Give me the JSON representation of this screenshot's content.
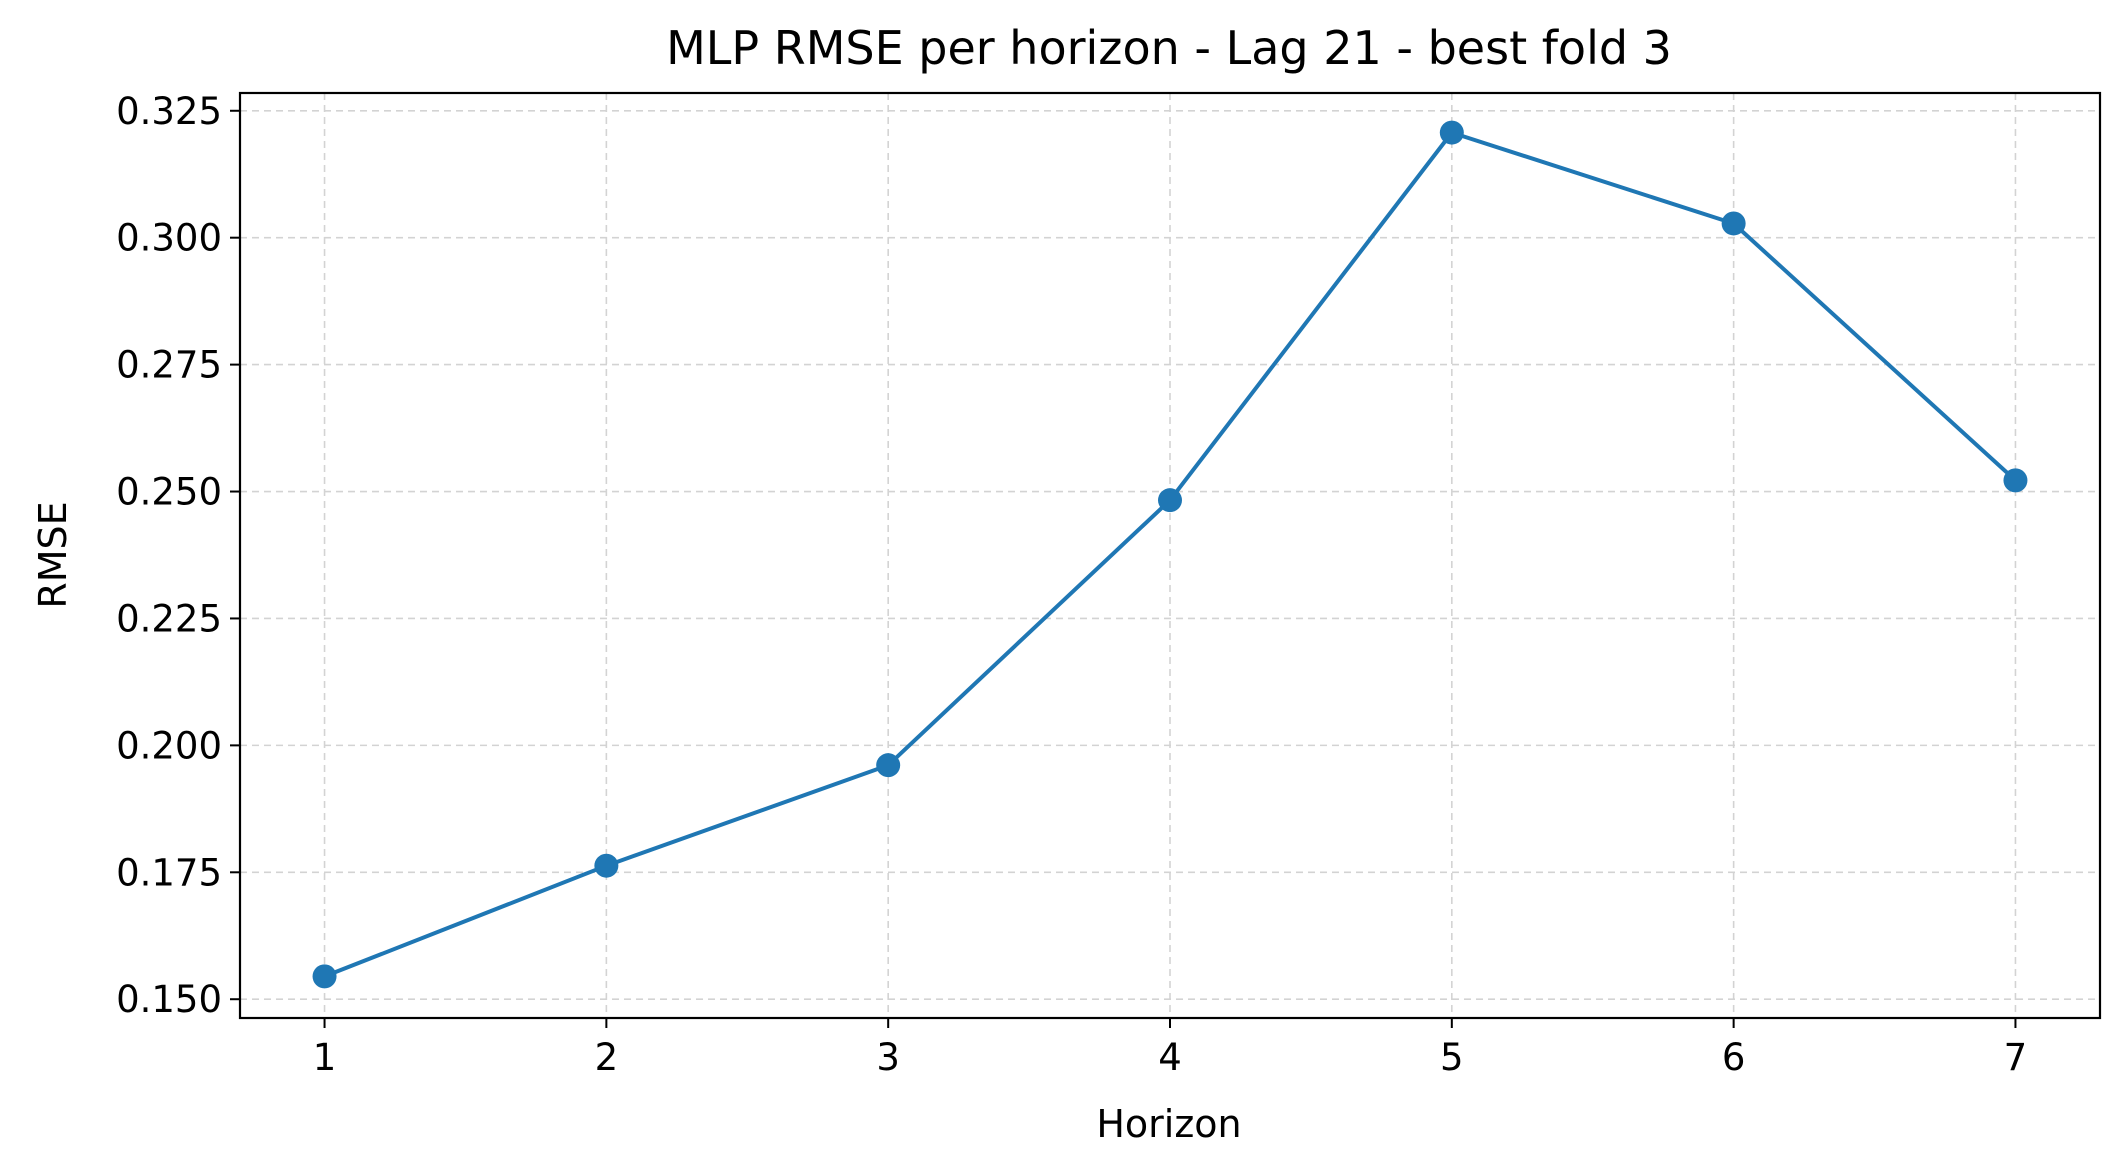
{
  "chart_data": {
    "type": "line",
    "title": "MLP RMSE per horizon - Lag 21 - best fold 3",
    "xlabel": "Horizon",
    "ylabel": "RMSE",
    "x": [
      1,
      2,
      3,
      4,
      5,
      6,
      7
    ],
    "x_tick_labels": [
      "1",
      "2",
      "3",
      "4",
      "5",
      "6",
      "7"
    ],
    "y_ticks": [
      0.15,
      0.175,
      0.2,
      0.225,
      0.25,
      0.275,
      0.3,
      0.325
    ],
    "y_tick_labels": [
      "0.150",
      "0.175",
      "0.200",
      "0.225",
      "0.250",
      "0.275",
      "0.300",
      "0.325"
    ],
    "xlim": [
      0.7,
      7.3
    ],
    "ylim": [
      0.1463,
      0.3285
    ],
    "grid": true,
    "grid_style": "dashed",
    "series": [
      {
        "values": [
          0.1545,
          0.1763,
          0.1961,
          0.2483,
          0.3207,
          0.3028,
          0.2522
        ],
        "color": "#1f77b4",
        "marker": "circle"
      }
    ],
    "colors": {
      "line": "#1f77b4",
      "grid": "#d3d3d3",
      "axes": "#000000"
    }
  }
}
